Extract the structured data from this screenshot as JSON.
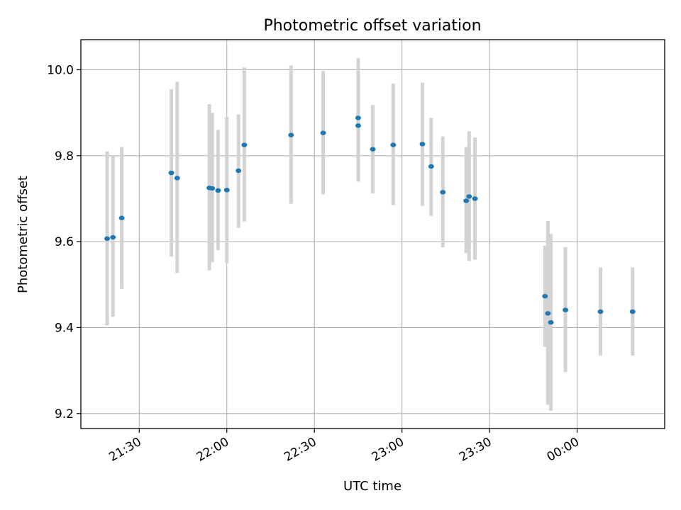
{
  "chart_data": {
    "type": "scatter",
    "title": "Photometric offset variation",
    "xlabel": "UTC time",
    "ylabel": "Photometric offset",
    "x_axis": "time",
    "x_range": [
      "21:10",
      "00:30"
    ],
    "ylim": [
      9.165,
      10.07
    ],
    "grid": true,
    "x_ticks": [
      "21:30",
      "22:00",
      "22:30",
      "23:00",
      "23:30",
      "00:00"
    ],
    "y_ticks": [
      "9.2",
      "9.4",
      "9.6",
      "9.8",
      "10.0"
    ],
    "colors": {
      "point": "#1f77b4",
      "errorbar": "#d3d3d3",
      "grid": "#b0b0b0"
    },
    "points": [
      {
        "t": "21:19",
        "y": 9.607,
        "lo": 9.405,
        "hi": 9.81
      },
      {
        "t": "21:21",
        "y": 9.61,
        "lo": 9.425,
        "hi": 9.8
      },
      {
        "t": "21:24",
        "y": 9.655,
        "lo": 9.49,
        "hi": 9.82
      },
      {
        "t": "21:41",
        "y": 9.76,
        "lo": 9.565,
        "hi": 9.955
      },
      {
        "t": "21:43",
        "y": 9.748,
        "lo": 9.527,
        "hi": 9.972
      },
      {
        "t": "21:54",
        "y": 9.725,
        "lo": 9.533,
        "hi": 9.92
      },
      {
        "t": "21:55",
        "y": 9.724,
        "lo": 9.552,
        "hi": 9.9
      },
      {
        "t": "21:57",
        "y": 9.719,
        "lo": 9.58,
        "hi": 9.86
      },
      {
        "t": "22:00",
        "y": 9.72,
        "lo": 9.55,
        "hi": 9.89
      },
      {
        "t": "22:04",
        "y": 9.765,
        "lo": 9.632,
        "hi": 9.896
      },
      {
        "t": "22:06",
        "y": 9.825,
        "lo": 9.647,
        "hi": 10.005
      },
      {
        "t": "22:22",
        "y": 9.848,
        "lo": 9.688,
        "hi": 10.01
      },
      {
        "t": "22:33",
        "y": 9.853,
        "lo": 9.71,
        "hi": 9.997
      },
      {
        "t": "22:45",
        "y": 9.888,
        "lo": 9.74,
        "hi": 10.027
      },
      {
        "t": "22:45",
        "y": 9.87,
        "lo": 9.74,
        "hi": 9.998
      },
      {
        "t": "22:50",
        "y": 9.815,
        "lo": 9.712,
        "hi": 9.918
      },
      {
        "t": "22:57",
        "y": 9.825,
        "lo": 9.685,
        "hi": 9.968
      },
      {
        "t": "23:07",
        "y": 9.827,
        "lo": 9.683,
        "hi": 9.97
      },
      {
        "t": "23:10",
        "y": 9.775,
        "lo": 9.66,
        "hi": 9.888
      },
      {
        "t": "23:14",
        "y": 9.715,
        "lo": 9.587,
        "hi": 9.845
      },
      {
        "t": "23:22",
        "y": 9.695,
        "lo": 9.573,
        "hi": 9.82
      },
      {
        "t": "23:23",
        "y": 9.705,
        "lo": 9.555,
        "hi": 9.857
      },
      {
        "t": "23:25",
        "y": 9.7,
        "lo": 9.558,
        "hi": 9.842
      },
      {
        "t": "23:49",
        "y": 9.473,
        "lo": 9.355,
        "hi": 9.59
      },
      {
        "t": "23:50",
        "y": 9.433,
        "lo": 9.22,
        "hi": 9.648
      },
      {
        "t": "23:51",
        "y": 9.412,
        "lo": 9.206,
        "hi": 9.618
      },
      {
        "t": "23:56",
        "y": 9.441,
        "lo": 9.296,
        "hi": 9.587
      },
      {
        "t": "00:08",
        "y": 9.437,
        "lo": 9.335,
        "hi": 9.54
      },
      {
        "t": "00:19",
        "y": 9.437,
        "lo": 9.335,
        "hi": 9.54
      }
    ]
  }
}
